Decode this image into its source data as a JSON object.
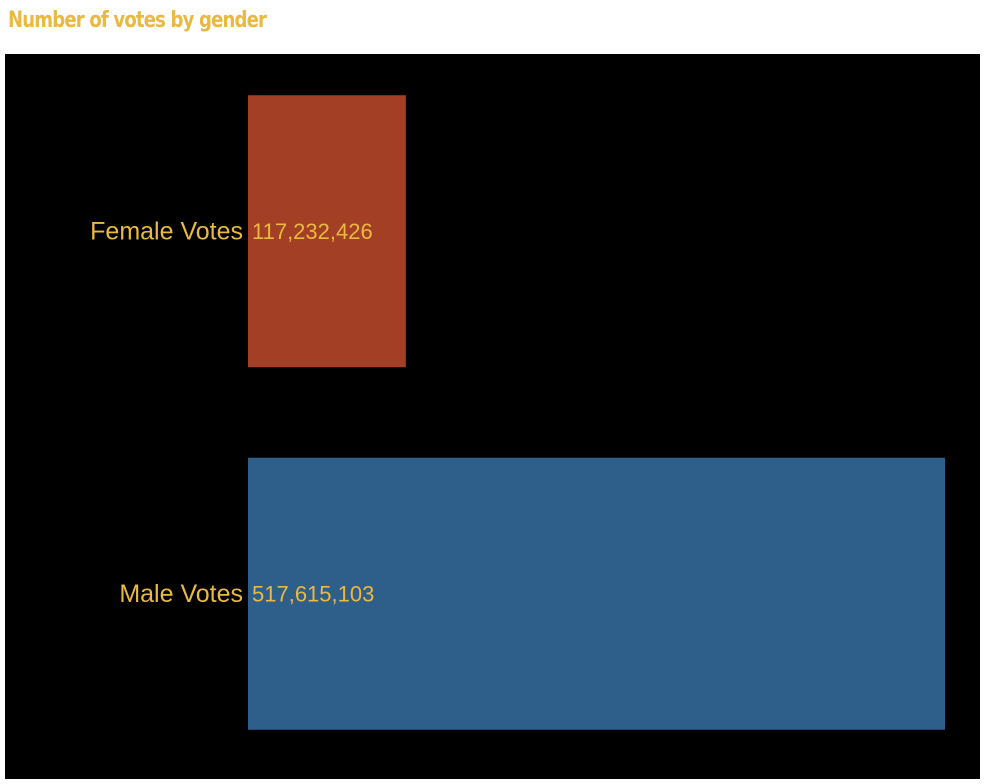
{
  "chart_data": {
    "type": "bar",
    "orientation": "horizontal",
    "title": "Number of votes by gender",
    "categories": [
      "Female Votes",
      "Male Votes"
    ],
    "values": [
      117232426,
      517615103
    ],
    "value_labels": [
      "117,232,426",
      "517,615,103"
    ],
    "colors": [
      "#a23f24",
      "#2e5e8a"
    ],
    "xlim": [
      0,
      517615103
    ],
    "grid": false,
    "legend": "none"
  },
  "style": {
    "title_color": "#e9b941",
    "label_color": "#e9b941",
    "background": "#000000"
  }
}
